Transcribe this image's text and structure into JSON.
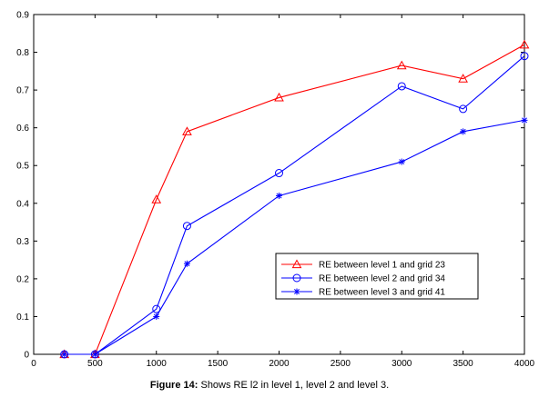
{
  "caption": {
    "label": "Figure 14:",
    "text": " Shows RE l2 in level 1, level 2 and level 3."
  },
  "chart_data": {
    "type": "line",
    "x": [
      250,
      500,
      1000,
      1250,
      2000,
      3000,
      3500,
      4000
    ],
    "xlim": [
      0,
      4000
    ],
    "ylim": [
      0,
      0.9
    ],
    "xticks": [
      0,
      500,
      1000,
      1500,
      2000,
      2500,
      3000,
      3500,
      4000
    ],
    "yticks": [
      0,
      0.1,
      0.2,
      0.3,
      0.4,
      0.5,
      0.6,
      0.7,
      0.8,
      0.9
    ],
    "grid": false,
    "legend_position": "lower-right",
    "series": [
      {
        "name": "RE between level 1 and grid 23",
        "color": "#ff0000",
        "marker": "triangle",
        "values": [
          0,
          0,
          0.41,
          0.59,
          0.68,
          0.765,
          0.73,
          0.82
        ]
      },
      {
        "name": "RE between level 2 and grid 34",
        "color": "#0000ff",
        "marker": "circle",
        "values": [
          0,
          0,
          0.12,
          0.34,
          0.48,
          0.71,
          0.65,
          0.79
        ]
      },
      {
        "name": "RE between level 3 and grid 41",
        "color": "#0000ff",
        "marker": "star",
        "values": [
          0,
          0,
          0.1,
          0.24,
          0.42,
          0.51,
          0.59,
          0.62
        ]
      }
    ]
  }
}
